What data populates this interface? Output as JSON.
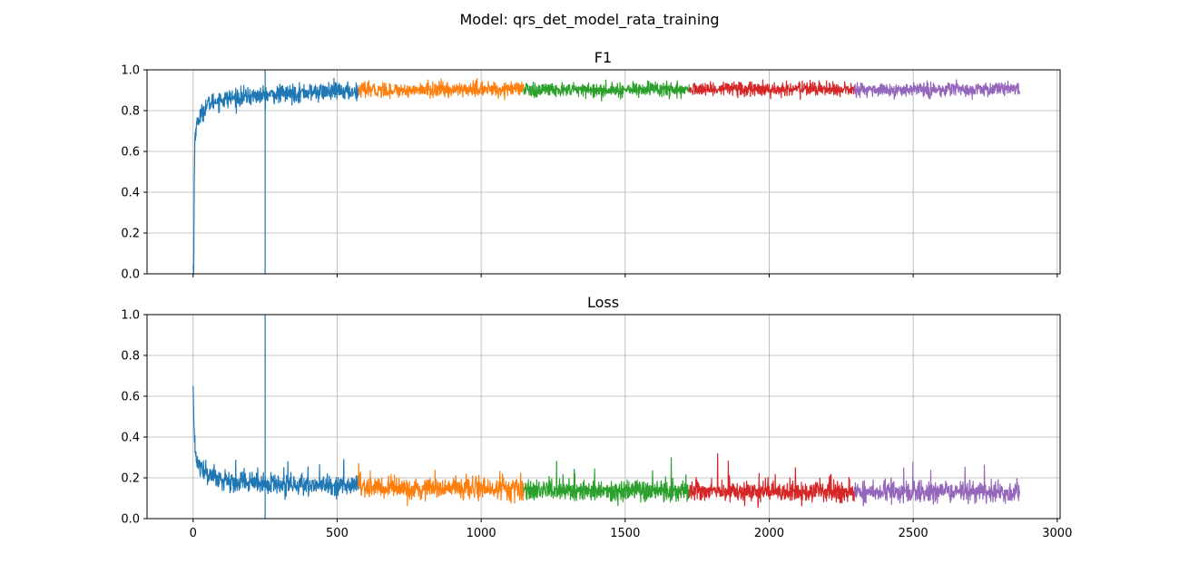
{
  "suptitle": "Model: qrs_det_model_rata_training",
  "chart_data": [
    {
      "id": "f1",
      "type": "line",
      "title": "F1",
      "xlim": [
        -160,
        3010
      ],
      "ylim": [
        0,
        1
      ],
      "xticks": [
        0,
        500,
        1000,
        1500,
        2000,
        2500,
        3000
      ],
      "xtick_labels_visible": false,
      "yticks": [
        0.0,
        0.2,
        0.4,
        0.6,
        0.8,
        1.0
      ],
      "ytick_labels": [
        "0.0",
        "0.2",
        "0.4",
        "0.6",
        "0.8",
        "1.0"
      ],
      "grid": true,
      "vline": {
        "x": 250,
        "color": "#1f77b4"
      },
      "series": [
        {
          "color": "#1f77b4",
          "x_range": [
            0,
            574
          ],
          "points": [
            [
              0,
              0.04
            ],
            [
              2,
              0.0
            ],
            [
              4,
              0.45
            ],
            [
              6,
              0.66
            ],
            [
              10,
              0.72
            ],
            [
              20,
              0.76
            ],
            [
              35,
              0.8
            ],
            [
              50,
              0.83
            ],
            [
              80,
              0.85
            ],
            [
              120,
              0.86
            ],
            [
              200,
              0.87
            ],
            [
              300,
              0.88
            ],
            [
              400,
              0.89
            ],
            [
              574,
              0.895
            ]
          ],
          "noise": 0.022
        },
        {
          "color": "#ff7f0e",
          "x_range": [
            574,
            1148
          ],
          "points": [
            [
              574,
              0.9
            ],
            [
              1148,
              0.905
            ]
          ],
          "noise": 0.018
        },
        {
          "color": "#2ca02c",
          "x_range": [
            1148,
            1722
          ],
          "points": [
            [
              1148,
              0.9
            ],
            [
              1722,
              0.905
            ]
          ],
          "noise": 0.018
        },
        {
          "color": "#d62728",
          "x_range": [
            1722,
            2296
          ],
          "points": [
            [
              1722,
              0.905
            ],
            [
              2296,
              0.905
            ]
          ],
          "noise": 0.017
        },
        {
          "color": "#9467bd",
          "x_range": [
            2296,
            2870
          ],
          "points": [
            [
              2296,
              0.905
            ],
            [
              2870,
              0.905
            ]
          ],
          "noise": 0.018
        }
      ]
    },
    {
      "id": "loss",
      "type": "line",
      "title": "Loss",
      "xlim": [
        -160,
        3010
      ],
      "ylim": [
        0,
        1
      ],
      "xticks": [
        0,
        500,
        1000,
        1500,
        2000,
        2500,
        3000
      ],
      "xtick_labels": [
        "0",
        "500",
        "1000",
        "1500",
        "2000",
        "2500",
        "3000"
      ],
      "yticks": [
        0.0,
        0.2,
        0.4,
        0.6,
        0.8,
        1.0
      ],
      "ytick_labels": [
        "0.0",
        "0.2",
        "0.4",
        "0.6",
        "0.8",
        "1.0"
      ],
      "grid": true,
      "vline": {
        "x": 250,
        "color": "#1f77b4"
      },
      "series": [
        {
          "color": "#1f77b4",
          "x_range": [
            0,
            574
          ],
          "points": [
            [
              0,
              0.65
            ],
            [
              3,
              0.45
            ],
            [
              6,
              0.35
            ],
            [
              12,
              0.29
            ],
            [
              25,
              0.25
            ],
            [
              50,
              0.22
            ],
            [
              100,
              0.19
            ],
            [
              200,
              0.175
            ],
            [
              350,
              0.165
            ],
            [
              574,
              0.155
            ]
          ],
          "noise": 0.025
        },
        {
          "color": "#ff7f0e",
          "x_range": [
            574,
            1148
          ],
          "points": [
            [
              574,
              0.15
            ],
            [
              1148,
              0.145
            ]
          ],
          "noise": 0.025
        },
        {
          "color": "#2ca02c",
          "x_range": [
            1148,
            1722
          ],
          "points": [
            [
              1148,
              0.14
            ],
            [
              1722,
              0.135
            ]
          ],
          "noise": 0.025
        },
        {
          "color": "#d62728",
          "x_range": [
            1722,
            2296
          ],
          "points": [
            [
              1722,
              0.135
            ],
            [
              2296,
              0.13
            ]
          ],
          "noise": 0.024
        },
        {
          "color": "#9467bd",
          "x_range": [
            2296,
            2870
          ],
          "points": [
            [
              2296,
              0.13
            ],
            [
              2870,
              0.13
            ]
          ],
          "noise": 0.025
        }
      ]
    }
  ]
}
